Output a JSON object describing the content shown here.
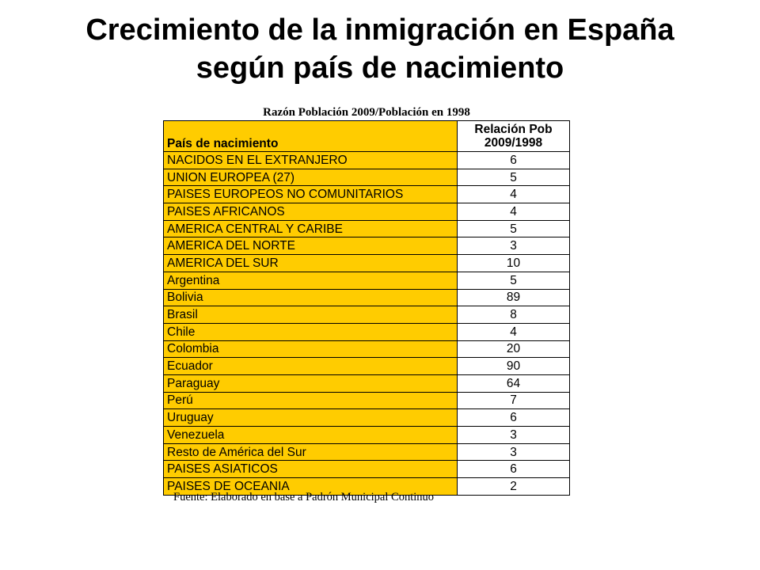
{
  "title": {
    "line1": "Crecimiento de la inmigración en España",
    "line2": "según país de nacimiento"
  },
  "table": {
    "caption": "Razón Población 2009/Población en 1998",
    "header": {
      "country": "País de nacimiento",
      "ratio_line1": "Relación Pob",
      "ratio_line2": "2009/1998"
    },
    "rows": [
      {
        "country": "NACIDOS EN EL EXTRANJERO",
        "ratio": "6"
      },
      {
        "country": "UNION EUROPEA (27)",
        "ratio": "5"
      },
      {
        "country": "PAISES EUROPEOS NO COMUNITARIOS",
        "ratio": "4"
      },
      {
        "country": "PAISES AFRICANOS",
        "ratio": "4"
      },
      {
        "country": "AMERICA CENTRAL Y CARIBE",
        "ratio": "5"
      },
      {
        "country": "AMERICA DEL NORTE",
        "ratio": "3"
      },
      {
        "country": "AMERICA DEL SUR",
        "ratio": "10"
      },
      {
        "country": "Argentina",
        "ratio": "5"
      },
      {
        "country": "Bolivia",
        "ratio": "89"
      },
      {
        "country": "Brasil",
        "ratio": "8"
      },
      {
        "country": "Chile",
        "ratio": "4"
      },
      {
        "country": "Colombia",
        "ratio": "20"
      },
      {
        "country": "Ecuador",
        "ratio": "90"
      },
      {
        "country": "Paraguay",
        "ratio": "64"
      },
      {
        "country": "Perú",
        "ratio": "7"
      },
      {
        "country": "Uruguay",
        "ratio": "6"
      },
      {
        "country": "Venezuela",
        "ratio": "3"
      },
      {
        "country": "Resto de América del Sur",
        "ratio": "3"
      },
      {
        "country": "PAISES ASIATICOS",
        "ratio": "6"
      },
      {
        "country": "PAISES DE OCEANIA",
        "ratio": "2"
      }
    ],
    "source": "Fuente: Elaborado en base a Padrón Municipal Continuo"
  },
  "colors": {
    "label_cell": "#ffcc00",
    "value_cell": "#ffffff",
    "border": "#000000"
  }
}
